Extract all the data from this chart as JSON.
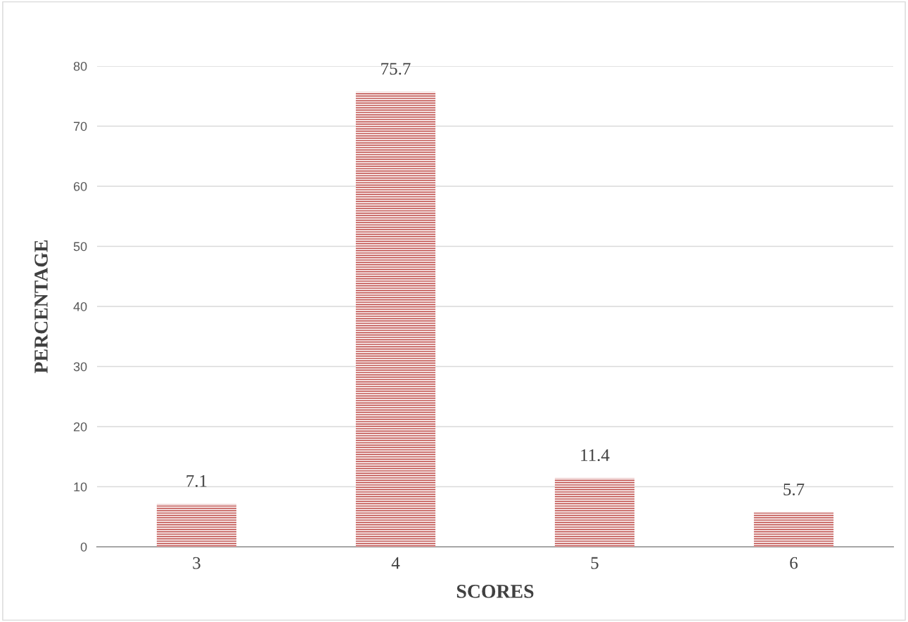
{
  "chart_data": {
    "type": "bar",
    "xlabel": "SCORES",
    "ylabel": "PERCENTAGE",
    "categories": [
      "3",
      "4",
      "5",
      "6"
    ],
    "values": [
      7.1,
      75.7,
      11.4,
      5.7
    ],
    "color": "#c0504d",
    "ylim": [
      0,
      80
    ],
    "yticks": [
      0,
      10,
      20,
      30,
      40,
      50,
      60,
      70,
      80
    ],
    "grid": "y",
    "data_labels": true
  }
}
